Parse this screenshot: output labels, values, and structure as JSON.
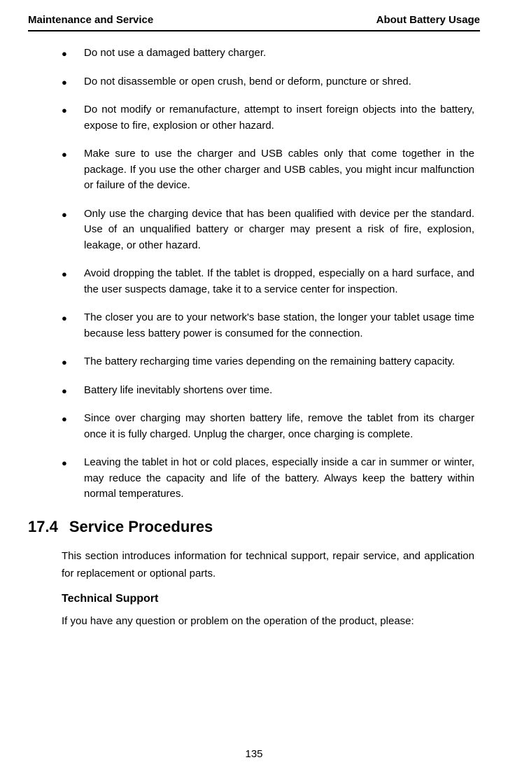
{
  "header": {
    "left": "Maintenance and Service",
    "right": "About Battery Usage"
  },
  "bullets": [
    "Do not use a damaged battery charger.",
    "Do not disassemble or open crush, bend or deform, puncture or shred.",
    "Do not modify or remanufacture, attempt to insert foreign objects into the battery, expose to fire, explosion or other hazard.",
    "Make sure to use the charger and USB cables only that come together in the package. If you use the other charger and USB cables, you might incur malfunction or failure of the device.",
    "Only use the charging device that has been qualified with device per the standard. Use of an unqualified battery or charger may present a risk of fire, explosion, leakage, or other hazard.",
    "Avoid dropping the tablet. If the tablet is dropped, especially on a hard surface, and the user suspects damage, take it to a service center for inspection.",
    "The closer you are to your network's base station, the longer your tablet usage time because less battery power is consumed for the connection.",
    "The battery recharging time varies depending on the remaining battery capacity.",
    "Battery life inevitably shortens over time.",
    "Since over charging may shorten battery life, remove the tablet from its charger once it is fully charged. Unplug the charger, once charging is complete.",
    "Leaving the tablet in hot or cold places, especially inside a car in summer or winter, may reduce the capacity and life of the battery. Always keep the battery within normal temperatures."
  ],
  "section": {
    "number": "17.4",
    "title": "Service Procedures",
    "intro": "This section introduces information for technical support, repair service, and application for replacement or optional parts.",
    "subheading": "Technical Support",
    "subtext": "If you have any question or problem on the operation of the product, please:"
  },
  "page_number": "135",
  "style": {
    "bullet_char": "●"
  }
}
